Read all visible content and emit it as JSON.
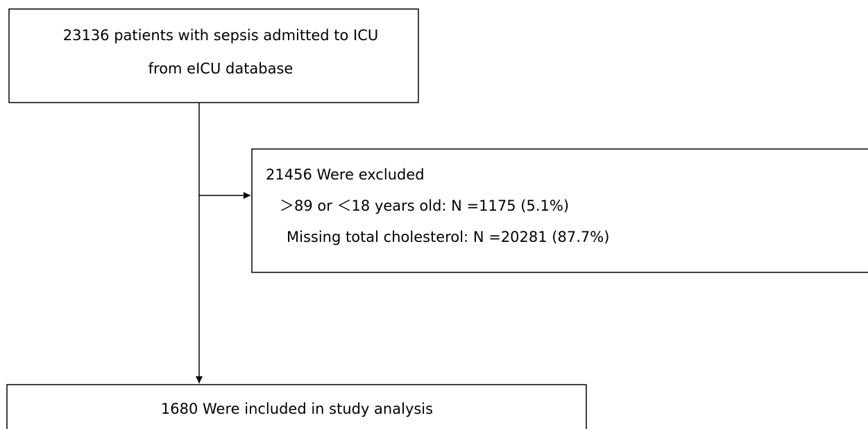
{
  "nodes": [
    {
      "lines": [
        "23136 patients with sepsis admitted to ICU",
        "from eICU database"
      ]
    },
    {
      "lines": [
        "21456 Were excluded",
        "＞89 or ＜18 years old: N =1175 (5.1%)",
        "Missing total cholesterol: N =20281 (87.7%)"
      ]
    },
    {
      "lines": [
        "1680 Were included in study analysis"
      ]
    }
  ]
}
